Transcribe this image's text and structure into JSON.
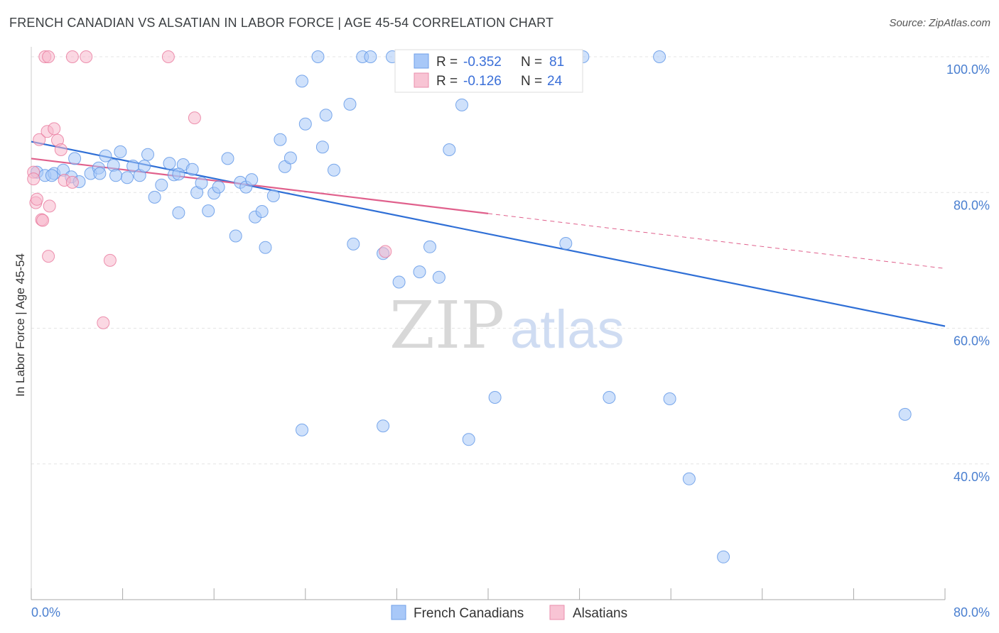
{
  "header": {
    "title": "FRENCH CANADIAN VS ALSATIAN IN LABOR FORCE | AGE 45-54 CORRELATION CHART",
    "source": "Source: ZipAtlas.com"
  },
  "watermark": {
    "zip": "ZIP",
    "atlas": "atlas"
  },
  "legend": {
    "rows": [
      {
        "r_label": "R =",
        "r_value": "-0.352",
        "n_label": "N =",
        "n_value": "81",
        "color": "#a8c8f8"
      },
      {
        "r_label": "R =",
        "r_value": "-0.126",
        "n_label": "N =",
        "n_value": "24",
        "color": "#f8b8cc"
      }
    ]
  },
  "bottom_legend": {
    "series1": "French Canadians",
    "series2": "Alsatians"
  },
  "chart_data": {
    "type": "scatter",
    "title": "FRENCH CANADIAN VS ALSATIAN IN LABOR FORCE | AGE 45-54 CORRELATION CHART",
    "xlabel": "",
    "ylabel": "In Labor Force | Age 45-54",
    "xlim": [
      0,
      80
    ],
    "ylim": [
      20,
      104
    ],
    "x_tick_labels": [
      "0.0%",
      "80.0%"
    ],
    "y_tick_labels": [
      "100.0%",
      "80.0%",
      "60.0%",
      "40.0%"
    ],
    "y_tick_values": [
      100,
      80,
      60,
      40
    ],
    "grid": true,
    "colors": {
      "blue": "#5b93e6",
      "blue_fill": "#a8c8f8",
      "pink": "#e8789c",
      "pink_fill": "#f8b8cc",
      "blue_line": "#2f6fd6",
      "pink_line": "#e0608c"
    },
    "series": [
      {
        "name": "French Canadians",
        "points": [
          [
            0.5,
            83.0
          ],
          [
            1.2,
            82.5
          ],
          [
            2.0,
            82.8
          ],
          [
            2.8,
            83.3
          ],
          [
            3.5,
            82.3
          ],
          [
            4.2,
            81.6
          ],
          [
            3.8,
            85.0
          ],
          [
            5.2,
            82.8
          ],
          [
            5.9,
            83.6
          ],
          [
            6.5,
            85.4
          ],
          [
            7.2,
            84.0
          ],
          [
            7.8,
            86.0
          ],
          [
            8.4,
            82.2
          ],
          [
            8.9,
            83.9
          ],
          [
            9.5,
            82.5
          ],
          [
            10.2,
            85.6
          ],
          [
            10.8,
            79.3
          ],
          [
            11.4,
            81.1
          ],
          [
            12.1,
            84.3
          ],
          [
            12.5,
            82.6
          ],
          [
            12.9,
            77.0
          ],
          [
            13.3,
            84.1
          ],
          [
            14.1,
            83.4
          ],
          [
            14.5,
            80.0
          ],
          [
            14.9,
            81.4
          ],
          [
            15.5,
            77.3
          ],
          [
            16.0,
            79.9
          ],
          [
            16.4,
            80.8
          ],
          [
            17.2,
            85.0
          ],
          [
            17.9,
            73.6
          ],
          [
            18.3,
            81.5
          ],
          [
            18.8,
            80.8
          ],
          [
            19.3,
            81.9
          ],
          [
            19.6,
            76.4
          ],
          [
            20.2,
            77.2
          ],
          [
            20.5,
            71.9
          ],
          [
            21.2,
            79.5
          ],
          [
            21.8,
            87.8
          ],
          [
            22.2,
            83.8
          ],
          [
            22.7,
            85.1
          ],
          [
            23.7,
            96.4
          ],
          [
            24.0,
            90.1
          ],
          [
            25.1,
            100.0
          ],
          [
            25.5,
            86.7
          ],
          [
            25.8,
            91.4
          ],
          [
            26.5,
            83.3
          ],
          [
            27.9,
            93.0
          ],
          [
            28.2,
            72.4
          ],
          [
            29.0,
            100.0
          ],
          [
            29.7,
            100.0
          ],
          [
            30.8,
            71.0
          ],
          [
            31.6,
            100.0
          ],
          [
            32.2,
            66.8
          ],
          [
            33.0,
            100.0
          ],
          [
            33.4,
            100.0
          ],
          [
            34.0,
            68.3
          ],
          [
            34.9,
            72.0
          ],
          [
            35.5,
            100.0
          ],
          [
            35.7,
            67.5
          ],
          [
            36.1,
            100.0
          ],
          [
            36.6,
            86.3
          ],
          [
            37.7,
            92.9
          ],
          [
            40.6,
            100.0
          ],
          [
            44.3,
            100.0
          ],
          [
            46.8,
            72.5
          ],
          [
            48.3,
            100.0
          ],
          [
            55.0,
            100.0
          ],
          [
            30.8,
            45.6
          ],
          [
            23.7,
            45.0
          ],
          [
            38.3,
            43.6
          ],
          [
            40.6,
            49.8
          ],
          [
            50.6,
            49.8
          ],
          [
            55.9,
            49.6
          ],
          [
            57.6,
            37.8
          ],
          [
            60.6,
            26.3
          ],
          [
            76.5,
            47.3
          ],
          [
            1.8,
            82.5
          ],
          [
            7.4,
            82.5
          ],
          [
            9.9,
            83.9
          ],
          [
            12.9,
            82.7
          ],
          [
            6.0,
            82.8
          ]
        ]
      },
      {
        "name": "Alsatians",
        "points": [
          [
            0.2,
            83.0
          ],
          [
            0.2,
            82.0
          ],
          [
            0.4,
            78.5
          ],
          [
            0.5,
            79.0
          ],
          [
            0.7,
            87.8
          ],
          [
            0.9,
            76.0
          ],
          [
            1.0,
            75.9
          ],
          [
            1.4,
            89.0
          ],
          [
            1.5,
            70.6
          ],
          [
            1.6,
            78.0
          ],
          [
            2.0,
            89.4
          ],
          [
            2.3,
            87.7
          ],
          [
            2.6,
            86.3
          ],
          [
            2.9,
            81.8
          ],
          [
            3.6,
            81.5
          ],
          [
            6.3,
            60.8
          ],
          [
            6.9,
            70.0
          ],
          [
            1.2,
            100.0
          ],
          [
            1.5,
            100.0
          ],
          [
            3.6,
            100.0
          ],
          [
            4.8,
            100.0
          ],
          [
            12.0,
            100.0
          ],
          [
            14.3,
            91.0
          ],
          [
            31.0,
            71.3
          ]
        ]
      }
    ],
    "trendlines": [
      {
        "series": "French Canadians",
        "x": [
          0,
          80
        ],
        "y": [
          87.5,
          60.3
        ],
        "style": "solid"
      },
      {
        "series": "Alsatians",
        "x": [
          0,
          40
        ],
        "y": [
          85.0,
          76.9
        ],
        "style": "solid"
      },
      {
        "series": "Alsatians",
        "x": [
          40,
          80
        ],
        "y": [
          76.9,
          68.8
        ],
        "style": "dashed"
      }
    ]
  }
}
